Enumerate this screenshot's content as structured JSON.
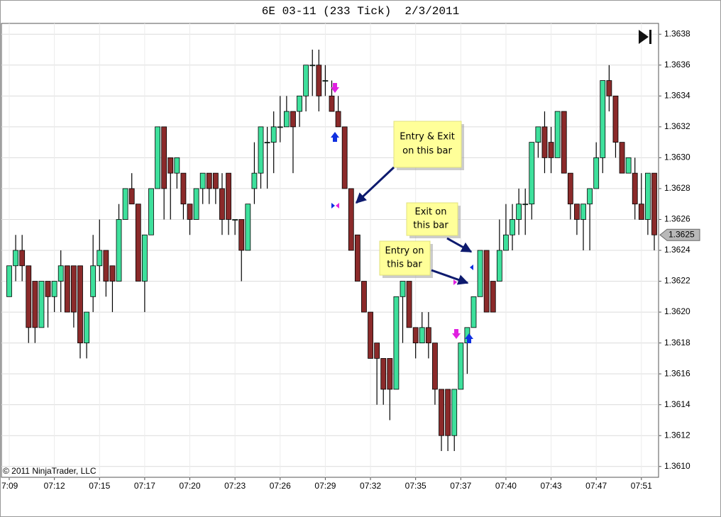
{
  "chart_data": {
    "type": "candlestick",
    "title": "6E 03-11 (233 Tick)  2/3/2011",
    "copyright": "© 2011 NinjaTrader, LLC",
    "categories": [
      "7:09",
      null,
      null,
      null,
      null,
      null,
      null,
      "07:12",
      null,
      null,
      null,
      null,
      null,
      null,
      "07:15",
      null,
      null,
      null,
      null,
      null,
      null,
      "07:17",
      null,
      null,
      null,
      null,
      null,
      null,
      "07:20",
      null,
      null,
      null,
      null,
      null,
      null,
      "07:23",
      null,
      null,
      null,
      null,
      null,
      null,
      "07:26",
      null,
      null,
      null,
      null,
      null,
      null,
      "07:29",
      null,
      null,
      null,
      null,
      null,
      null,
      "07:32",
      null,
      null,
      null,
      null,
      null,
      null,
      "07:35",
      null,
      null,
      null,
      null,
      null,
      null,
      "07:37",
      null,
      null,
      null,
      null,
      null,
      null,
      "07:40",
      null,
      null,
      null,
      null,
      null,
      null,
      "07:43",
      null,
      null,
      null,
      null,
      null,
      null,
      "07:47",
      null,
      null,
      null,
      null,
      null,
      null,
      "07:51",
      null,
      null
    ],
    "open": [
      1.3621,
      1.3623,
      1.3624,
      1.3623,
      1.3622,
      1.3619,
      1.3622,
      1.3621,
      1.3622,
      1.3623,
      1.3623,
      1.3623,
      1.3618,
      1.3621,
      1.3623,
      1.3624,
      1.3623,
      1.3622,
      1.3626,
      1.3628,
      1.3627,
      1.3622,
      1.3625,
      1.3628,
      1.3632,
      1.363,
      1.3629,
      1.3629,
      1.3627,
      1.3626,
      1.3628,
      1.3629,
      1.3629,
      1.3628,
      1.3629,
      1.3626,
      1.3626,
      1.3624,
      1.3628,
      1.3629,
      1.3631,
      1.3631,
      1.3632,
      1.3632,
      1.3633,
      1.3633,
      1.3634,
      1.3636,
      1.3636,
      1.3635,
      1.3634,
      1.3633,
      1.3632,
      1.3628,
      1.3625,
      1.3622,
      1.362,
      1.3618,
      1.3617,
      1.3617,
      1.3615,
      1.3621,
      1.3622,
      1.3619,
      1.3618,
      1.3619,
      1.3618,
      1.3615,
      1.3615,
      1.3612,
      1.3615,
      1.3618,
      1.3619,
      1.3621,
      1.3624,
      1.3622,
      1.3622,
      1.3624,
      1.3625,
      1.3626,
      1.3627,
      1.3627,
      1.3631,
      1.3632,
      1.3631,
      1.363,
      1.3633,
      1.3629,
      1.3627,
      1.3626,
      1.3627,
      1.3628,
      1.363,
      1.3635,
      1.3634,
      1.3631,
      1.3629,
      1.3629,
      1.3627,
      1.3626,
      1.3629
    ],
    "high": [
      1.3623,
      1.3625,
      1.3625,
      1.3623,
      1.3622,
      1.3622,
      1.3622,
      1.3622,
      1.3624,
      1.3623,
      1.3623,
      1.3623,
      1.362,
      1.3625,
      1.3626,
      1.3624,
      1.3623,
      1.3627,
      1.3628,
      1.3629,
      1.3627,
      1.3625,
      1.3628,
      1.3632,
      1.3632,
      1.363,
      1.363,
      1.3629,
      1.3627,
      1.3628,
      1.3629,
      1.3629,
      1.3629,
      1.3629,
      1.3629,
      1.3626,
      1.3626,
      1.3627,
      1.3631,
      1.3632,
      1.3632,
      1.3633,
      1.3634,
      1.3634,
      1.3633,
      1.3634,
      1.3636,
      1.3637,
      1.3637,
      1.3636,
      1.3635,
      1.3634,
      1.3632,
      1.3628,
      1.3625,
      1.3622,
      1.362,
      1.3618,
      1.3617,
      1.3617,
      1.3621,
      1.3622,
      1.3622,
      1.3619,
      1.362,
      1.362,
      1.3618,
      1.3615,
      1.3615,
      1.3615,
      1.3618,
      1.3619,
      1.3621,
      1.3624,
      1.3624,
      1.3622,
      1.3626,
      1.3627,
      1.3627,
      1.3628,
      1.3628,
      1.3631,
      1.3632,
      1.3633,
      1.3632,
      1.3633,
      1.3633,
      1.3629,
      1.3627,
      1.3627,
      1.3628,
      1.3631,
      1.3635,
      1.3636,
      1.3634,
      1.3631,
      1.363,
      1.363,
      1.3629,
      1.3629,
      1.3629
    ],
    "low": [
      1.3621,
      1.3622,
      1.3622,
      1.3618,
      1.3618,
      1.3619,
      1.3619,
      1.362,
      1.362,
      1.362,
      1.3619,
      1.3617,
      1.3617,
      1.362,
      1.3622,
      1.3621,
      1.362,
      1.3622,
      1.3626,
      1.3627,
      1.3622,
      1.362,
      1.3625,
      1.3628,
      1.3626,
      1.3626,
      1.3628,
      1.3626,
      1.3625,
      1.3626,
      1.3627,
      1.3627,
      1.3627,
      1.3625,
      1.3625,
      1.3625,
      1.3622,
      1.3624,
      1.3627,
      1.3628,
      1.3628,
      1.3629,
      1.3631,
      1.3632,
      1.3629,
      1.3632,
      1.3633,
      1.3634,
      1.3633,
      1.3634,
      1.3633,
      1.3632,
      1.3628,
      1.3624,
      1.3622,
      1.362,
      1.3617,
      1.3614,
      1.3614,
      1.3613,
      1.3615,
      1.3618,
      1.3619,
      1.3617,
      1.3618,
      1.3617,
      1.3614,
      1.3611,
      1.3611,
      1.3611,
      1.3615,
      1.3616,
      1.3619,
      1.3621,
      1.362,
      1.362,
      1.3622,
      1.3624,
      1.3624,
      1.3625,
      1.3625,
      1.3626,
      1.363,
      1.3629,
      1.3629,
      1.363,
      1.3629,
      1.3626,
      1.3625,
      1.3624,
      1.3624,
      1.3628,
      1.3629,
      1.3633,
      1.363,
      1.3629,
      1.3629,
      1.3626,
      1.3626,
      1.3625,
      1.3624
    ],
    "close": [
      1.3623,
      1.3624,
      1.3623,
      1.3619,
      1.3619,
      1.3622,
      1.3621,
      1.3622,
      1.3623,
      1.362,
      1.362,
      1.3618,
      1.362,
      1.3623,
      1.3624,
      1.3622,
      1.3622,
      1.3626,
      1.3628,
      1.3627,
      1.3622,
      1.3625,
      1.3628,
      1.3632,
      1.3628,
      1.3629,
      1.363,
      1.3627,
      1.3626,
      1.3628,
      1.3629,
      1.3628,
      1.3628,
      1.3626,
      1.3626,
      1.3626,
      1.3624,
      1.3627,
      1.3629,
      1.3632,
      1.3631,
      1.3632,
      1.3632,
      1.3633,
      1.3632,
      1.3634,
      1.3636,
      1.3636,
      1.3634,
      1.3635,
      1.3633,
      1.3632,
      1.3628,
      1.3624,
      1.3622,
      1.362,
      1.3617,
      1.3617,
      1.3615,
      1.3615,
      1.3621,
      1.3622,
      1.3619,
      1.3618,
      1.3619,
      1.3618,
      1.3615,
      1.3612,
      1.3612,
      1.3615,
      1.3618,
      1.3619,
      1.3621,
      1.3624,
      1.362,
      1.362,
      1.3624,
      1.3625,
      1.3626,
      1.3627,
      1.3627,
      1.3631,
      1.3632,
      1.363,
      1.363,
      1.3633,
      1.3629,
      1.3627,
      1.3626,
      1.3627,
      1.3628,
      1.363,
      1.3635,
      1.3634,
      1.3631,
      1.3629,
      1.363,
      1.3627,
      1.3626,
      1.3629,
      1.3625
    ],
    "up_color": "#3ee09c",
    "down_color": "#8b2a2a",
    "last_price": 1.3625,
    "ylim": [
      1.36093,
      1.36387
    ],
    "yticks": [
      {
        "value": 1.361,
        "label": "1.3610"
      },
      1.3612,
      1.3614,
      1.3616,
      1.3618,
      {
        "value": 1.362,
        "label": "1.3620"
      },
      1.3622,
      1.3624,
      1.3626,
      1.3628,
      {
        "value": 1.363,
        "label": "1.3630"
      },
      1.3632,
      1.3634,
      1.3636,
      1.3638
    ],
    "grid": true,
    "annotations": [
      "Entry & Exit",
      "on this bar",
      "Exit on",
      "this bar",
      "Entry on",
      "this bar"
    ]
  }
}
